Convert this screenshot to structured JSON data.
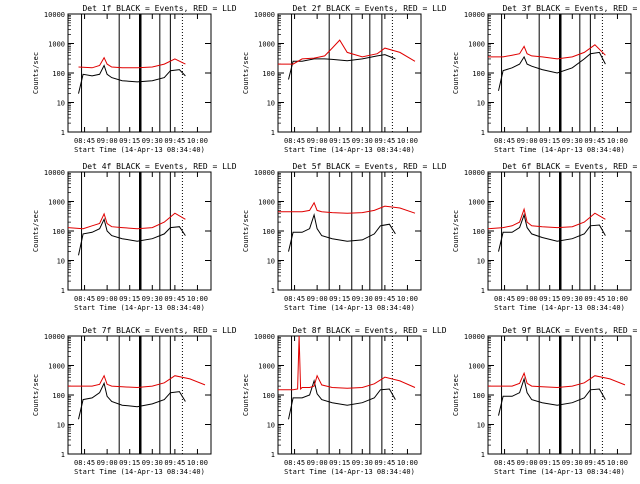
{
  "colors": {
    "events": "#000000",
    "lld": "#e00000",
    "frame": "#000000"
  },
  "common": {
    "ylabel": "Counts/sec",
    "xlabel": "Start Time (14-Apr-13 08:34:40)",
    "y_scale": "log",
    "ylim": [
      1,
      10000
    ],
    "y_tick_labels": [
      "1",
      "10",
      "100",
      "1000",
      "10000"
    ],
    "x_range_minutes": [
      "08:34:40",
      "10:09"
    ],
    "x_tick_labels_a": [
      "08:45",
      "09:00",
      "09:15",
      "09:30",
      "09:45",
      "10:00"
    ],
    "x_tick_labels_b": [
      "08:45",
      "09:00",
      "09:15",
      "09:30",
      "09:45",
      "10:00"
    ]
  },
  "chart_data": [
    {
      "type": "line",
      "title": "Det 1f BLACK = Events, RED = LLD",
      "series": [
        {
          "name": "Events",
          "color": "black",
          "x": [
            "08:41",
            "08:44",
            "08:50",
            "08:55",
            "08:58",
            "09:00",
            "09:03",
            "09:10",
            "09:20",
            "09:30",
            "09:38",
            "09:42",
            "09:48",
            "09:52"
          ],
          "values": [
            20,
            90,
            80,
            90,
            180,
            90,
            70,
            55,
            50,
            55,
            70,
            120,
            130,
            80
          ]
        },
        {
          "name": "LLD",
          "color": "red",
          "x": [
            "08:41",
            "08:50",
            "08:55",
            "08:58",
            "09:00",
            "09:03",
            "09:10",
            "09:20",
            "09:30",
            "09:38",
            "09:45",
            "09:52"
          ],
          "values": [
            160,
            150,
            180,
            330,
            200,
            160,
            150,
            150,
            160,
            200,
            300,
            200
          ]
        }
      ],
      "vlines_thick": [
        "09:22"
      ],
      "vlines_thin": [
        "08:43",
        "09:08",
        "09:35",
        "09:42"
      ],
      "vlines_dotted": [
        "09:50"
      ]
    },
    {
      "type": "line",
      "title": "Det 2f BLACK = Events, RED = LLD",
      "series": [
        {
          "name": "Events",
          "color": "black",
          "x": [
            "08:41",
            "08:44",
            "08:50",
            "08:58",
            "09:05",
            "09:10",
            "09:20",
            "09:30",
            "09:40",
            "09:45",
            "09:52"
          ],
          "values": [
            60,
            250,
            250,
            300,
            300,
            290,
            260,
            300,
            380,
            420,
            300
          ]
        },
        {
          "name": "LLD",
          "color": "red",
          "x": [
            "08:34",
            "08:44",
            "08:50",
            "08:58",
            "09:05",
            "09:10",
            "09:15",
            "09:20",
            "09:30",
            "09:40",
            "09:45",
            "09:55",
            "10:05"
          ],
          "values": [
            200,
            200,
            300,
            320,
            380,
            700,
            1300,
            500,
            350,
            450,
            700,
            500,
            250
          ]
        }
      ],
      "vlines_thick": [],
      "vlines_thin": [
        "08:43",
        "09:08",
        "09:23",
        "09:35",
        "09:43"
      ],
      "vlines_dotted": [
        "09:50"
      ]
    },
    {
      "type": "line",
      "title": "Det 3f BLACK = Events, RED = LLD",
      "series": [
        {
          "name": "Events",
          "color": "black",
          "x": [
            "08:41",
            "08:44",
            "08:50",
            "08:55",
            "08:58",
            "09:00",
            "09:03",
            "09:10",
            "09:20",
            "09:30",
            "09:38",
            "09:42",
            "09:48",
            "09:52"
          ],
          "values": [
            25,
            120,
            150,
            200,
            350,
            200,
            170,
            130,
            100,
            150,
            300,
            450,
            500,
            200
          ]
        },
        {
          "name": "LLD",
          "color": "red",
          "x": [
            "08:34",
            "08:44",
            "08:50",
            "08:55",
            "08:58",
            "09:00",
            "09:03",
            "09:10",
            "09:20",
            "09:30",
            "09:38",
            "09:45",
            "09:52"
          ],
          "values": [
            350,
            350,
            400,
            450,
            800,
            450,
            380,
            350,
            300,
            350,
            500,
            900,
            400
          ]
        }
      ],
      "vlines_thick": [
        "09:22"
      ],
      "vlines_thin": [
        "08:43",
        "09:08",
        "09:35",
        "09:42"
      ],
      "vlines_dotted": [
        "09:50"
      ]
    },
    {
      "type": "line",
      "title": "Det 4f BLACK = Events, RED = LLD",
      "series": [
        {
          "name": "Events",
          "color": "black",
          "x": [
            "08:41",
            "08:44",
            "08:50",
            "08:55",
            "08:58",
            "09:00",
            "09:03",
            "09:10",
            "09:20",
            "09:30",
            "09:38",
            "09:42",
            "09:48",
            "09:52"
          ],
          "values": [
            15,
            80,
            90,
            120,
            250,
            100,
            70,
            55,
            45,
            55,
            80,
            130,
            140,
            70
          ]
        },
        {
          "name": "LLD",
          "color": "red",
          "x": [
            "08:34",
            "08:44",
            "08:50",
            "08:55",
            "08:58",
            "09:00",
            "09:03",
            "09:10",
            "09:20",
            "09:30",
            "09:38",
            "09:45",
            "09:52"
          ],
          "values": [
            130,
            120,
            150,
            180,
            380,
            180,
            140,
            130,
            120,
            130,
            200,
            400,
            250
          ]
        }
      ],
      "vlines_thick": [
        "09:22"
      ],
      "vlines_thin": [
        "08:43",
        "09:08",
        "09:35",
        "09:42"
      ],
      "vlines_dotted": [
        "09:50"
      ]
    },
    {
      "type": "line",
      "title": "Det 5f BLACK = Events, RED = LLD",
      "series": [
        {
          "name": "Events",
          "color": "black",
          "x": [
            "08:41",
            "08:44",
            "08:50",
            "08:55",
            "08:58",
            "09:00",
            "09:03",
            "09:10",
            "09:20",
            "09:30",
            "09:38",
            "09:42",
            "09:48",
            "09:52"
          ],
          "values": [
            20,
            90,
            90,
            120,
            350,
            120,
            70,
            55,
            45,
            50,
            80,
            150,
            170,
            80
          ]
        },
        {
          "name": "LLD",
          "color": "red",
          "x": [
            "08:34",
            "08:44",
            "08:50",
            "08:55",
            "08:58",
            "09:00",
            "09:03",
            "09:10",
            "09:20",
            "09:30",
            "09:38",
            "09:45",
            "09:55",
            "10:05"
          ],
          "values": [
            450,
            450,
            450,
            500,
            900,
            500,
            450,
            420,
            400,
            420,
            500,
            700,
            600,
            400
          ]
        }
      ],
      "vlines_thick": [],
      "vlines_thin": [
        "08:43",
        "09:08",
        "09:23",
        "09:35",
        "09:43"
      ],
      "vlines_dotted": [
        "09:50"
      ]
    },
    {
      "type": "line",
      "title": "Det 6f BLACK = Events, RED = LLD",
      "series": [
        {
          "name": "Events",
          "color": "black",
          "x": [
            "08:41",
            "08:44",
            "08:50",
            "08:55",
            "08:58",
            "09:00",
            "09:03",
            "09:10",
            "09:20",
            "09:30",
            "09:38",
            "09:42",
            "09:48",
            "09:52"
          ],
          "values": [
            20,
            90,
            90,
            130,
            350,
            130,
            80,
            60,
            45,
            55,
            80,
            150,
            160,
            70
          ]
        },
        {
          "name": "LLD",
          "color": "red",
          "x": [
            "08:34",
            "08:44",
            "08:50",
            "08:55",
            "08:58",
            "09:00",
            "09:03",
            "09:10",
            "09:20",
            "09:30",
            "09:38",
            "09:45",
            "09:52"
          ],
          "values": [
            120,
            130,
            150,
            200,
            550,
            200,
            150,
            140,
            130,
            140,
            200,
            400,
            250
          ]
        }
      ],
      "vlines_thick": [
        "09:22"
      ],
      "vlines_thin": [
        "08:43",
        "09:08",
        "09:35",
        "09:42"
      ],
      "vlines_dotted": [
        "09:50"
      ]
    },
    {
      "type": "line",
      "title": "Det 7f BLACK = Events, RED = LLD",
      "series": [
        {
          "name": "Events",
          "color": "black",
          "x": [
            "08:41",
            "08:44",
            "08:50",
            "08:55",
            "08:58",
            "09:00",
            "09:03",
            "09:10",
            "09:20",
            "09:30",
            "09:38",
            "09:42",
            "09:48",
            "09:52"
          ],
          "values": [
            15,
            70,
            80,
            120,
            250,
            90,
            60,
            45,
            40,
            50,
            70,
            120,
            130,
            60
          ]
        },
        {
          "name": "LLD",
          "color": "red",
          "x": [
            "08:34",
            "08:44",
            "08:50",
            "08:55",
            "08:58",
            "09:00",
            "09:03",
            "09:10",
            "09:20",
            "09:30",
            "09:38",
            "09:45",
            "09:55",
            "10:05"
          ],
          "values": [
            200,
            200,
            200,
            230,
            450,
            230,
            200,
            190,
            180,
            200,
            260,
            450,
            350,
            220
          ]
        }
      ],
      "vlines_thick": [
        "09:22"
      ],
      "vlines_thin": [
        "08:43",
        "09:08",
        "09:35",
        "09:42"
      ],
      "vlines_dotted": [
        "09:50"
      ]
    },
    {
      "type": "line",
      "title": "Det 8f BLACK = Events, RED = LLD",
      "series": [
        {
          "name": "Events",
          "color": "black",
          "x": [
            "08:41",
            "08:44",
            "08:50",
            "08:55",
            "08:58",
            "09:00",
            "09:03",
            "09:10",
            "09:20",
            "09:30",
            "09:38",
            "09:42",
            "09:48",
            "09:52"
          ],
          "values": [
            15,
            80,
            80,
            100,
            300,
            110,
            70,
            55,
            45,
            55,
            80,
            150,
            160,
            70
          ]
        },
        {
          "name": "LLD",
          "color": "red",
          "x": [
            "08:34",
            "08:44",
            "08:47",
            "08:48",
            "08:49",
            "08:50",
            "08:55",
            "08:58",
            "09:00",
            "09:03",
            "09:10",
            "09:20",
            "09:30",
            "09:38",
            "09:45",
            "09:55",
            "10:05"
          ],
          "values": [
            150,
            150,
            160,
            10000,
            160,
            180,
            180,
            200,
            450,
            220,
            180,
            170,
            180,
            240,
            400,
            300,
            180
          ]
        }
      ],
      "vlines_thick": [],
      "vlines_thin": [
        "08:43",
        "09:08",
        "09:23",
        "09:35",
        "09:43"
      ],
      "vlines_dotted": [
        "09:50"
      ]
    },
    {
      "type": "line",
      "title": "Det 9f BLACK = Events, RED = LLD",
      "series": [
        {
          "name": "Events",
          "color": "black",
          "x": [
            "08:41",
            "08:44",
            "08:50",
            "08:55",
            "08:58",
            "09:00",
            "09:03",
            "09:10",
            "09:20",
            "09:30",
            "09:38",
            "09:42",
            "09:48",
            "09:52"
          ],
          "values": [
            20,
            90,
            90,
            120,
            350,
            120,
            70,
            55,
            45,
            55,
            80,
            150,
            160,
            70
          ]
        },
        {
          "name": "LLD",
          "color": "red",
          "x": [
            "08:34",
            "08:44",
            "08:50",
            "08:55",
            "08:58",
            "09:00",
            "09:03",
            "09:10",
            "09:20",
            "09:30",
            "09:38",
            "09:45",
            "09:55",
            "10:05"
          ],
          "values": [
            200,
            200,
            200,
            250,
            550,
            250,
            200,
            190,
            180,
            200,
            260,
            450,
            350,
            220
          ]
        }
      ],
      "vlines_thick": [
        "09:22"
      ],
      "vlines_thin": [
        "08:43",
        "09:08",
        "09:35",
        "09:42"
      ],
      "vlines_dotted": [
        "09:50"
      ]
    }
  ]
}
